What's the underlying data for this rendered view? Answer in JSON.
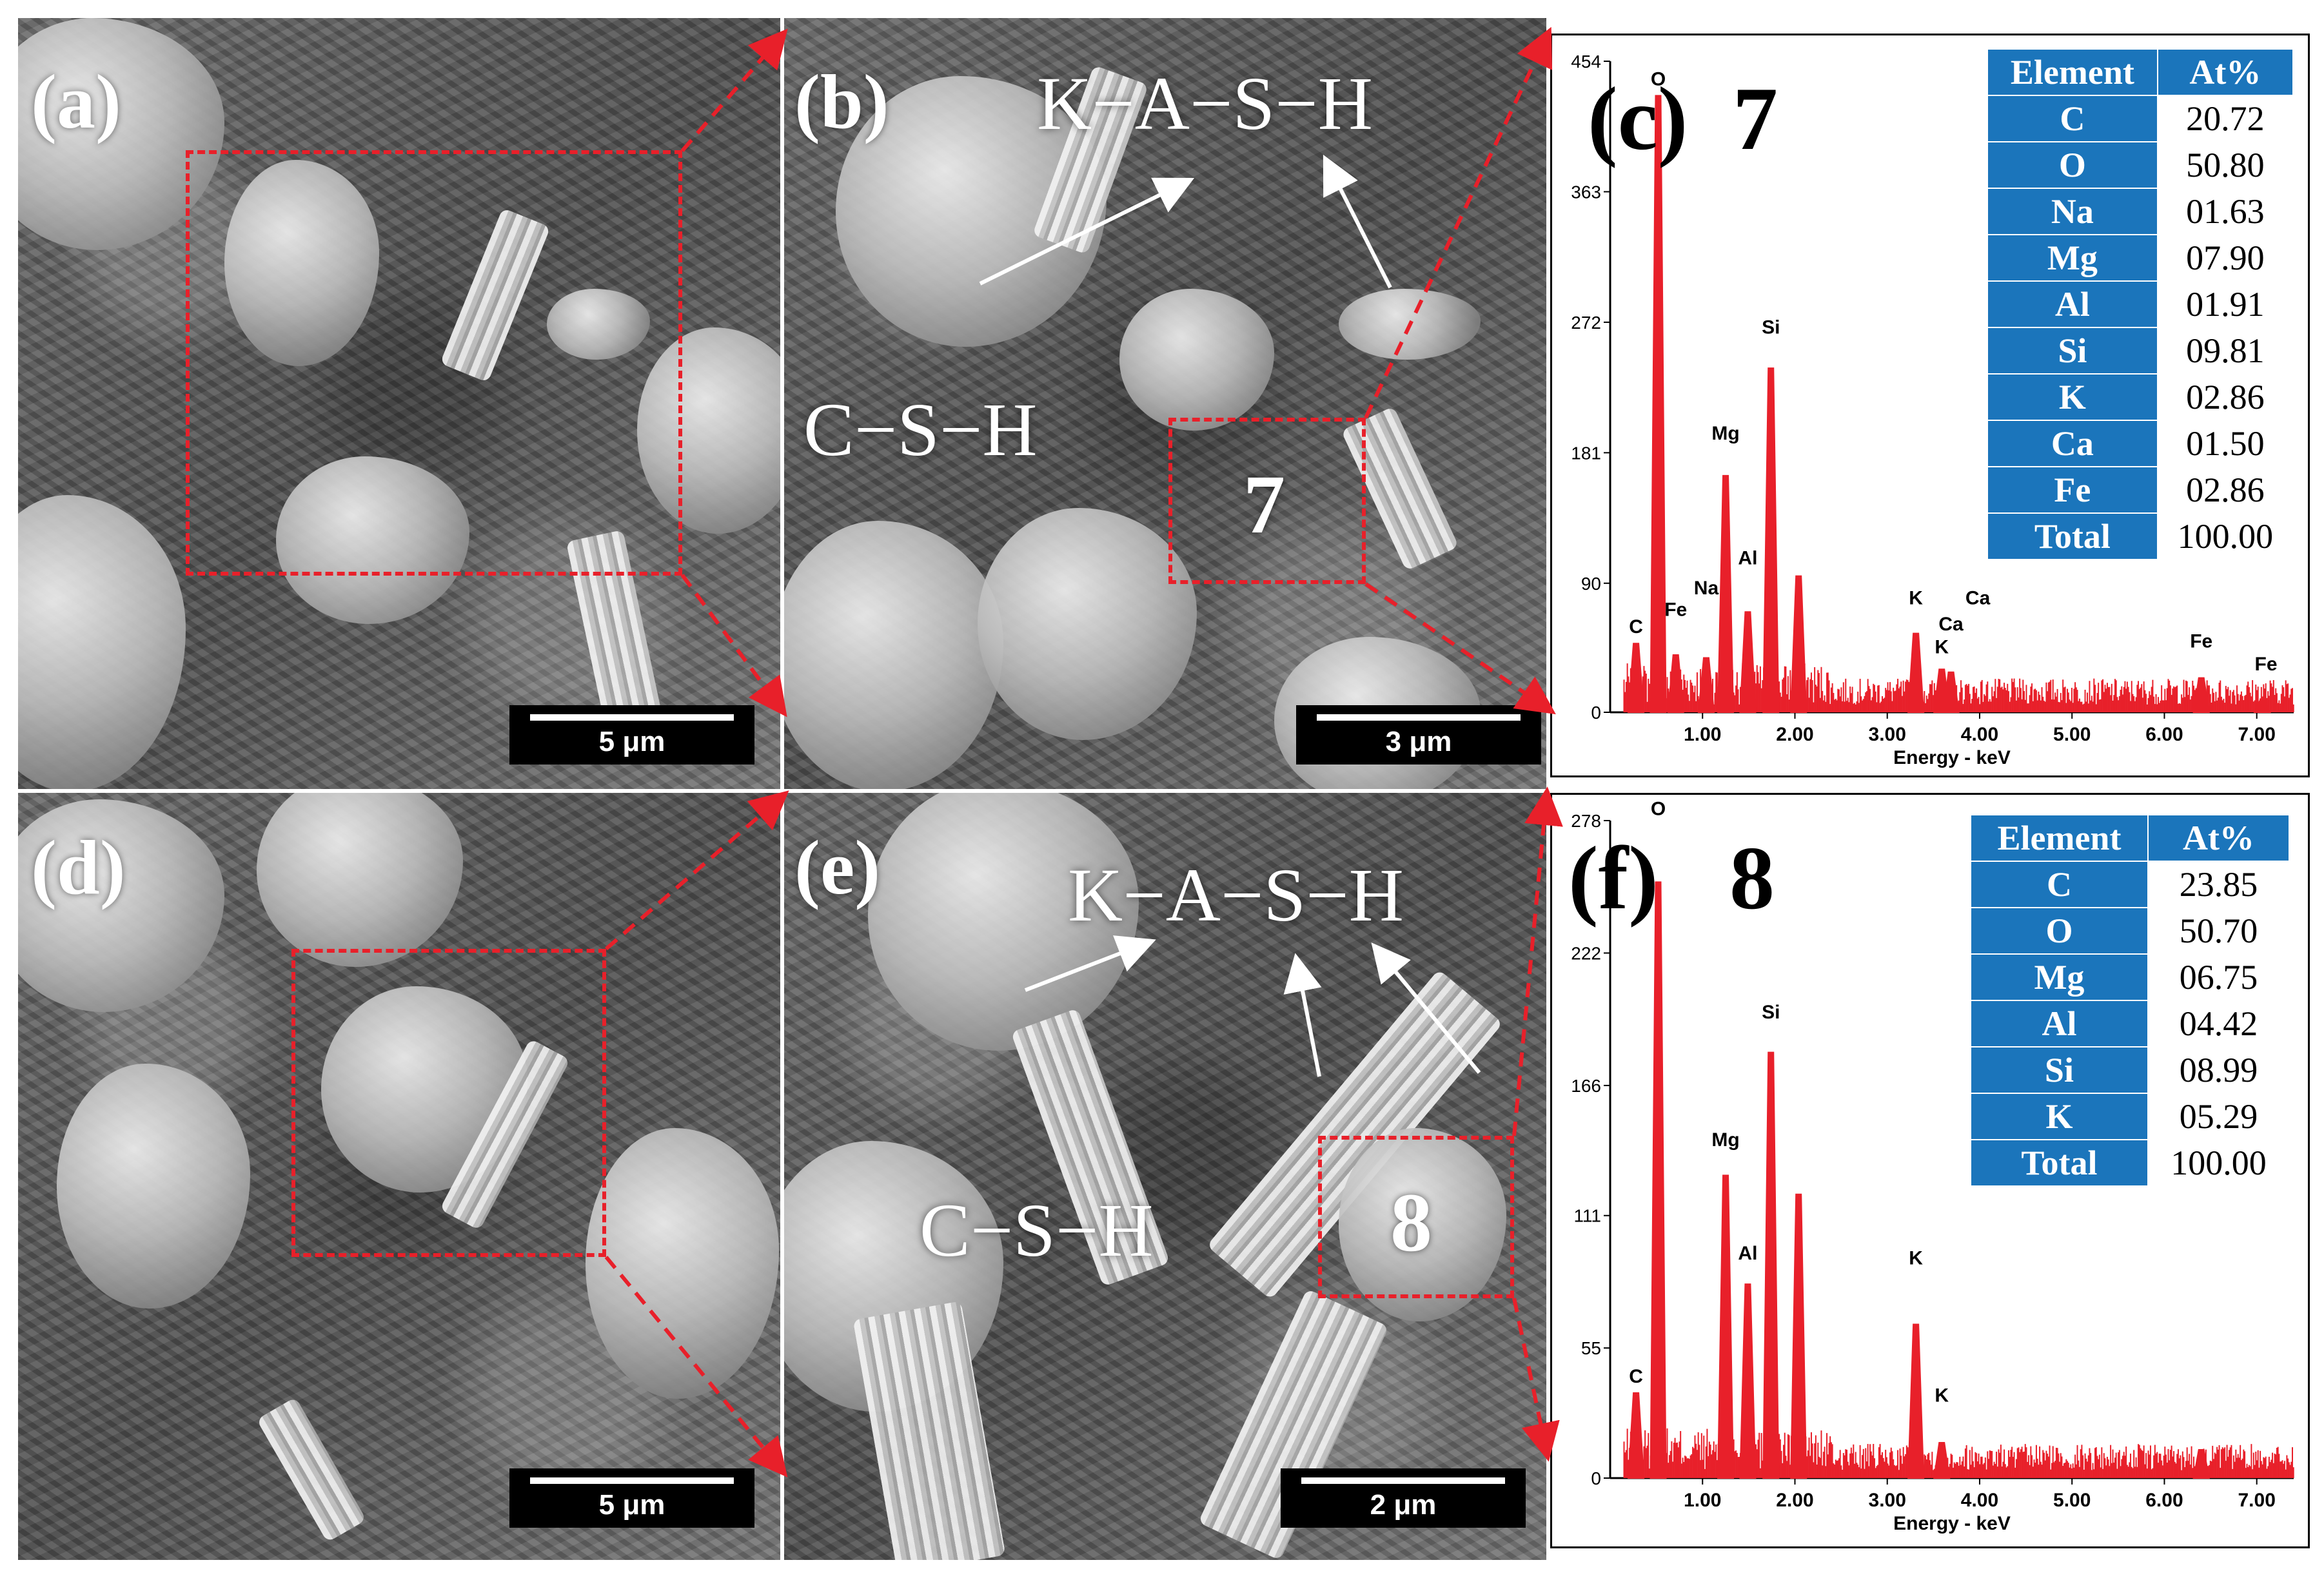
{
  "panels": {
    "a": {
      "label": "(a)",
      "scale": "5 μm"
    },
    "b": {
      "label": "(b)",
      "scale": "3 μm",
      "phase_top": "K−A−S−H",
      "phase_left": "C−S−H",
      "point": "7"
    },
    "d": {
      "label": "(d)",
      "scale": "5 μm"
    },
    "e": {
      "label": "(e)",
      "scale": "2 μm",
      "phase_top": "K−A−S−H",
      "phase_left": "C−S−H",
      "point": "8"
    },
    "c": {
      "label": "(c)",
      "point": "7",
      "table": {
        "header": [
          "Element",
          "At%"
        ],
        "rows": [
          [
            "C",
            "20.72"
          ],
          [
            "O",
            "50.80"
          ],
          [
            "Na",
            "01.63"
          ],
          [
            "Mg",
            "07.90"
          ],
          [
            "Al",
            "01.91"
          ],
          [
            "Si",
            "09.81"
          ],
          [
            "K",
            "02.86"
          ],
          [
            "Ca",
            "01.50"
          ],
          [
            "Fe",
            "02.86"
          ],
          [
            "Total",
            "100.00"
          ]
        ]
      }
    },
    "f": {
      "label": "(f)",
      "point": "8",
      "table": {
        "header": [
          "Element",
          "At%"
        ],
        "rows": [
          [
            "C",
            "23.85"
          ],
          [
            "O",
            "50.70"
          ],
          [
            "Mg",
            "06.75"
          ],
          [
            "Al",
            "04.42"
          ],
          [
            "Si",
            "08.99"
          ],
          [
            "K",
            "05.29"
          ],
          [
            "Total",
            "100.00"
          ]
        ]
      }
    }
  },
  "chart_data": [
    {
      "type": "line",
      "xlabel": "Energy - keV",
      "ylabel": "",
      "xlim": [
        0.0,
        7.4
      ],
      "ylim": [
        0,
        454
      ],
      "x_ticks": [
        "1.00",
        "2.00",
        "3.00",
        "4.00",
        "5.00",
        "6.00",
        "7.00"
      ],
      "y_ticks": [
        "0",
        "90",
        "181",
        "272",
        "363",
        "454"
      ],
      "peaks": [
        {
          "element": "C",
          "x": 0.28,
          "y": 48
        },
        {
          "element": "O",
          "x": 0.52,
          "y": 430
        },
        {
          "element": "Fe",
          "x": 0.71,
          "y": 40
        },
        {
          "element": "Na",
          "x": 1.04,
          "y": 38
        },
        {
          "element": "Mg",
          "x": 1.25,
          "y": 165
        },
        {
          "element": "Al",
          "x": 1.49,
          "y": 70
        },
        {
          "element": "Si",
          "x": 1.74,
          "y": 240
        },
        {
          "element": "",
          "x": 2.04,
          "y": 95
        },
        {
          "element": "K",
          "x": 3.31,
          "y": 55
        },
        {
          "element": "K",
          "x": 3.59,
          "y": 30
        },
        {
          "element": "Ca",
          "x": 3.69,
          "y": 28
        },
        {
          "element": "Fe",
          "x": 6.4,
          "y": 24
        },
        {
          "element": "Fe",
          "x": 7.06,
          "y": 8
        }
      ],
      "peak_labels": [
        {
          "text": "O",
          "x": 0.52,
          "y": 430
        },
        {
          "text": "C",
          "x": 0.28,
          "y": 48
        },
        {
          "text": "Fe",
          "x": 0.71,
          "y": 60
        },
        {
          "text": "Na",
          "x": 1.04,
          "y": 75
        },
        {
          "text": "Mg",
          "x": 1.25,
          "y": 183
        },
        {
          "text": "Al",
          "x": 1.49,
          "y": 96
        },
        {
          "text": "Si",
          "x": 1.74,
          "y": 257
        },
        {
          "text": "K",
          "x": 3.31,
          "y": 68
        },
        {
          "text": "K",
          "x": 3.59,
          "y": 34
        },
        {
          "text": "Ca",
          "x": 3.69,
          "y": 50
        },
        {
          "text": "Ca",
          "x": 3.98,
          "y": 68
        },
        {
          "text": "Fe",
          "x": 6.4,
          "y": 38
        },
        {
          "text": "Fe",
          "x": 7.1,
          "y": 22
        }
      ]
    },
    {
      "type": "line",
      "xlabel": "Energy - keV",
      "ylabel": "",
      "xlim": [
        0.0,
        7.4
      ],
      "ylim": [
        0,
        278
      ],
      "x_ticks": [
        "1.00",
        "2.00",
        "3.00",
        "4.00",
        "5.00",
        "6.00",
        "7.00"
      ],
      "y_ticks": [
        "0",
        "55",
        "111",
        "166",
        "222",
        "278"
      ],
      "peaks": [
        {
          "element": "C",
          "x": 0.28,
          "y": 36
        },
        {
          "element": "O",
          "x": 0.52,
          "y": 252
        },
        {
          "element": "Mg",
          "x": 1.25,
          "y": 128
        },
        {
          "element": "Al",
          "x": 1.49,
          "y": 82
        },
        {
          "element": "Si",
          "x": 1.74,
          "y": 180
        },
        {
          "element": "",
          "x": 2.04,
          "y": 120
        },
        {
          "element": "K",
          "x": 3.31,
          "y": 65
        },
        {
          "element": "K",
          "x": 3.59,
          "y": 15
        },
        {
          "element": "",
          "x": 6.4,
          "y": 12
        }
      ],
      "peak_labels": [
        {
          "text": "O",
          "x": 0.52,
          "y": 276
        },
        {
          "text": "C",
          "x": 0.28,
          "y": 36
        },
        {
          "text": "Mg",
          "x": 1.25,
          "y": 136
        },
        {
          "text": "Al",
          "x": 1.49,
          "y": 88
        },
        {
          "text": "Si",
          "x": 1.74,
          "y": 190
        },
        {
          "text": "K",
          "x": 3.31,
          "y": 86
        },
        {
          "text": "K",
          "x": 3.59,
          "y": 28
        }
      ]
    }
  ]
}
